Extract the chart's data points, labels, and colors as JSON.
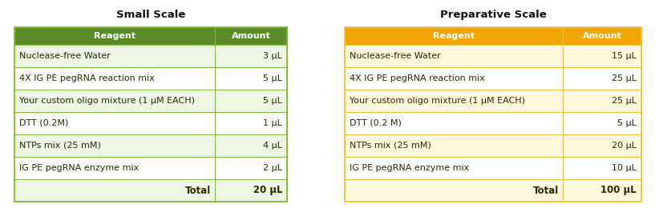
{
  "small_scale": {
    "title": "Small Scale",
    "header": [
      "Reagent",
      "Amount"
    ],
    "rows": [
      [
        "Nuclease-free Water",
        "3 μL"
      ],
      [
        "4X IG PE pegRNA reaction mix",
        "5 μL"
      ],
      [
        "Your custom oligo mixture (1 μM EACH)",
        "5 μL"
      ],
      [
        "DTT (0.2M)",
        "1 μL"
      ],
      [
        "NTPs mix (25 mM)",
        "4 μL"
      ],
      [
        "IG PE pegRNA enzyme mix",
        "2 μL"
      ],
      [
        "Total",
        "20 μL"
      ]
    ],
    "header_color": "#5B8C2A",
    "header_text_color": "#FFFFFF",
    "row_colors": [
      "#EEF5E4",
      "#FFFFFF",
      "#EEF5E4",
      "#FFFFFF",
      "#EEF5E4",
      "#FFFFFF",
      "#EEF5E4"
    ],
    "border_color": "#7EB83A",
    "text_color": "#2A2A00"
  },
  "preparative_scale": {
    "title": "Preparative Scale",
    "header": [
      "Reagent",
      "Amount"
    ],
    "rows": [
      [
        "Nuclease-free Water",
        "15 μL"
      ],
      [
        "4X IG PE pegRNA reaction mix",
        "25 μL"
      ],
      [
        "Your custom oligo mixture (1 μM EACH)",
        "25 μL"
      ],
      [
        "DTT (0.2 M)",
        "5 μL"
      ],
      [
        "NTPs mix (25 mM)",
        "20 μL"
      ],
      [
        "IG PE pegRNA enzyme mix",
        "10 μL"
      ],
      [
        "Total",
        "100 μL"
      ]
    ],
    "header_color": "#F0A500",
    "header_text_color": "#FFFFFF",
    "row_colors": [
      "#FFF8DC",
      "#FFFFFF",
      "#FFF8DC",
      "#FFFFFF",
      "#FFF8DC",
      "#FFFFFF",
      "#FFF8DC"
    ],
    "border_color": "#F0C040",
    "text_color": "#2A2A00"
  },
  "background_color": "#FFFFFF",
  "font_size": 8.0,
  "title_font_size": 9.5
}
